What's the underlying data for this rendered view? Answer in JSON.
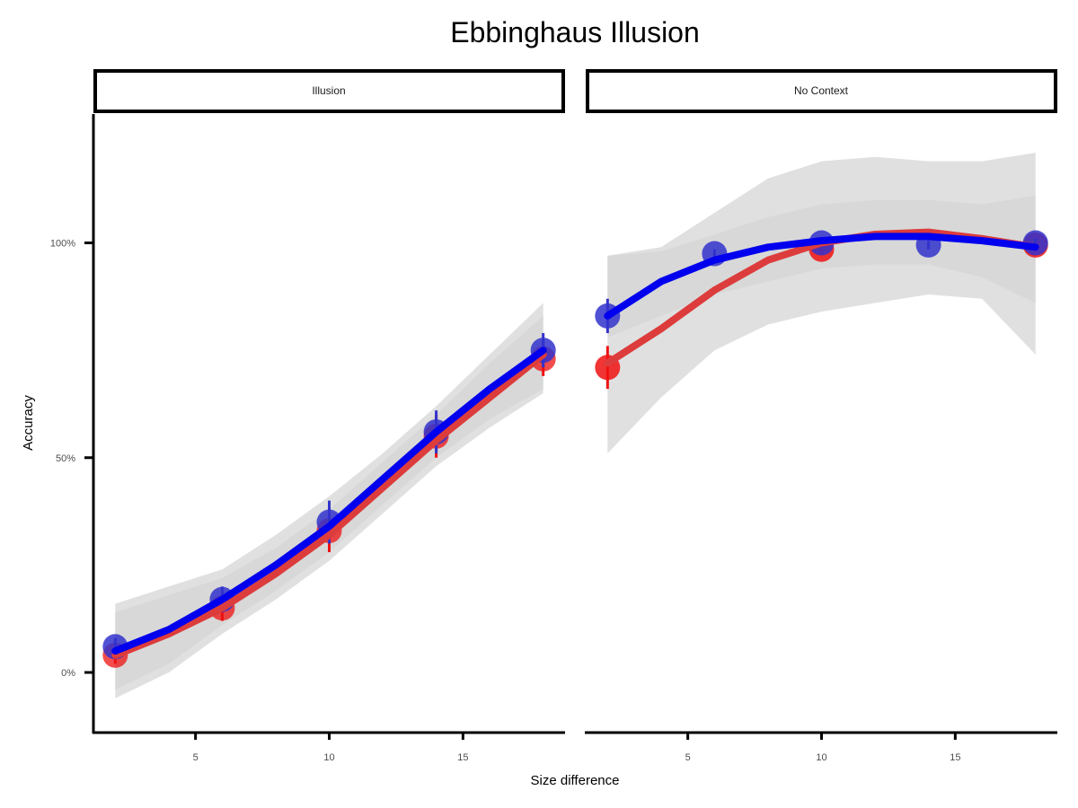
{
  "chart_data": {
    "type": "scatter",
    "title": "Ebbinghaus Illusion",
    "xlabel": "Size difference",
    "ylabel": "Accuracy",
    "x_ticks": [
      5,
      10,
      15
    ],
    "y_ticks": [
      "0%",
      "50%",
      "100%"
    ],
    "y_tick_values": [
      0,
      0.5,
      1.0
    ],
    "xlim": [
      1.25,
      18.75
    ],
    "ylim": [
      -0.14,
      1.3
    ],
    "colors": {
      "red_points": "#ee1111",
      "red_line": "#dd3c3c",
      "blue_points": "#3333cc",
      "blue_line": "#0000ee",
      "ribbon": "#bdbdbd",
      "ribbon_outer": "#d6d6d6"
    },
    "facets": [
      {
        "label": "Illusion",
        "red": {
          "x": [
            2,
            6,
            10,
            14,
            18
          ],
          "y": [
            0.04,
            0.15,
            0.33,
            0.55,
            0.73
          ],
          "err": [
            0.02,
            0.03,
            0.05,
            0.05,
            0.04
          ],
          "fit": [
            [
              2,
              0.04
            ],
            [
              4,
              0.09
            ],
            [
              6,
              0.15
            ],
            [
              8,
              0.23
            ],
            [
              10,
              0.32
            ],
            [
              12,
              0.43
            ],
            [
              14,
              0.54
            ],
            [
              16,
              0.64
            ],
            [
              18,
              0.74
            ]
          ],
          "band": [
            [
              2,
              -0.06,
              0.14
            ],
            [
              4,
              0.0,
              0.18
            ],
            [
              6,
              0.09,
              0.22
            ],
            [
              8,
              0.17,
              0.29
            ],
            [
              10,
              0.26,
              0.38
            ],
            [
              12,
              0.37,
              0.49
            ],
            [
              14,
              0.48,
              0.6
            ],
            [
              16,
              0.57,
              0.72
            ],
            [
              18,
              0.65,
              0.83
            ]
          ]
        },
        "blue": {
          "x": [
            2,
            6,
            10,
            14,
            18
          ],
          "y": [
            0.06,
            0.17,
            0.35,
            0.56,
            0.75
          ],
          "err": [
            0.02,
            0.03,
            0.05,
            0.05,
            0.04
          ],
          "fit": [
            [
              2,
              0.05
            ],
            [
              4,
              0.1
            ],
            [
              6,
              0.17
            ],
            [
              8,
              0.25
            ],
            [
              10,
              0.34
            ],
            [
              12,
              0.45
            ],
            [
              14,
              0.56
            ],
            [
              16,
              0.66
            ],
            [
              18,
              0.75
            ]
          ],
          "band": [
            [
              2,
              -0.04,
              0.16
            ],
            [
              4,
              0.02,
              0.2
            ],
            [
              6,
              0.11,
              0.24
            ],
            [
              8,
              0.19,
              0.32
            ],
            [
              10,
              0.28,
              0.41
            ],
            [
              12,
              0.39,
              0.51
            ],
            [
              14,
              0.5,
              0.62
            ],
            [
              16,
              0.59,
              0.74
            ],
            [
              18,
              0.66,
              0.86
            ]
          ]
        }
      },
      {
        "label": "No Context",
        "red": {
          "x": [
            2,
            10,
            18
          ],
          "y": [
            0.71,
            0.985,
            0.995
          ],
          "err": [
            0.05,
            0.01,
            0.01
          ],
          "fit": [
            [
              2,
              0.72
            ],
            [
              4,
              0.8
            ],
            [
              6,
              0.89
            ],
            [
              8,
              0.96
            ],
            [
              10,
              1.0
            ],
            [
              12,
              1.02
            ],
            [
              14,
              1.025
            ],
            [
              16,
              1.01
            ],
            [
              18,
              0.99
            ]
          ],
          "band": [
            [
              2,
              0.51,
              0.97
            ],
            [
              4,
              0.64,
              0.99
            ],
            [
              6,
              0.75,
              1.07
            ],
            [
              8,
              0.81,
              1.15
            ],
            [
              10,
              0.84,
              1.19
            ],
            [
              12,
              0.86,
              1.2
            ],
            [
              14,
              0.88,
              1.19
            ],
            [
              16,
              0.87,
              1.19
            ],
            [
              18,
              0.74,
              1.21
            ]
          ]
        },
        "blue": {
          "x": [
            2,
            6,
            10,
            14,
            18
          ],
          "y": [
            0.83,
            0.975,
            1.0,
            0.995,
            1.0
          ],
          "err": [
            0.04,
            0.01,
            0.01,
            0.01,
            0.01
          ],
          "fit": [
            [
              2,
              0.83
            ],
            [
              4,
              0.91
            ],
            [
              6,
              0.96
            ],
            [
              8,
              0.99
            ],
            [
              10,
              1.005
            ],
            [
              12,
              1.015
            ],
            [
              14,
              1.015
            ],
            [
              16,
              1.005
            ],
            [
              18,
              0.99
            ]
          ],
          "band": [
            [
              2,
              0.78,
              0.97
            ],
            [
              4,
              0.83,
              0.98
            ],
            [
              6,
              0.88,
              1.02
            ],
            [
              8,
              0.91,
              1.06
            ],
            [
              10,
              0.94,
              1.09
            ],
            [
              12,
              0.95,
              1.1
            ],
            [
              14,
              0.95,
              1.1
            ],
            [
              16,
              0.92,
              1.09
            ],
            [
              18,
              0.86,
              1.11
            ]
          ]
        }
      }
    ]
  }
}
